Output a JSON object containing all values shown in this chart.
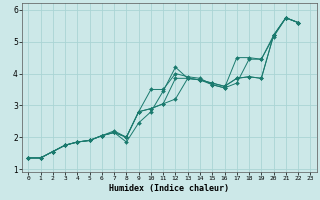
{
  "xlabel": "Humidex (Indice chaleur)",
  "bg_color": "#cce8e8",
  "grid_major_color": "#aad4d4",
  "grid_minor_color": "#bbdfdf",
  "line_color": "#1a7a6e",
  "xlim": [
    -0.5,
    23.5
  ],
  "ylim": [
    0.9,
    6.2
  ],
  "yticks": [
    1,
    2,
    3,
    4,
    5,
    6
  ],
  "xticks": [
    0,
    1,
    2,
    3,
    4,
    5,
    6,
    7,
    8,
    9,
    10,
    11,
    12,
    13,
    14,
    15,
    16,
    17,
    18,
    19,
    20,
    21,
    22,
    23
  ],
  "series": [
    {
      "x": [
        0,
        1,
        2,
        3,
        4,
        5,
        6,
        7,
        8,
        9,
        10,
        11,
        12,
        13,
        14,
        15,
        16,
        17,
        18,
        19,
        20,
        21,
        22
      ],
      "y": [
        1.35,
        1.35,
        1.55,
        1.75,
        1.85,
        1.9,
        2.05,
        2.15,
        1.85,
        2.45,
        2.8,
        3.45,
        4.2,
        3.85,
        3.8,
        3.7,
        3.6,
        3.85,
        3.9,
        3.85,
        5.2,
        5.75,
        5.6
      ]
    },
    {
      "x": [
        0,
        1,
        2,
        3,
        4,
        5,
        6,
        7,
        8,
        9,
        10,
        11,
        12,
        13,
        14,
        15,
        16,
        17,
        18,
        19,
        20,
        21,
        22
      ],
      "y": [
        1.35,
        1.35,
        1.55,
        1.75,
        1.85,
        1.9,
        2.05,
        2.15,
        2.0,
        2.8,
        2.9,
        3.05,
        3.2,
        3.85,
        3.8,
        3.7,
        3.6,
        3.85,
        3.9,
        3.85,
        5.2,
        5.75,
        5.6
      ]
    },
    {
      "x": [
        0,
        1,
        2,
        3,
        4,
        5,
        6,
        7,
        8,
        9,
        10,
        11,
        12,
        13,
        14,
        15,
        16,
        17,
        18,
        19,
        20,
        21,
        22
      ],
      "y": [
        1.35,
        1.35,
        1.55,
        1.75,
        1.85,
        1.9,
        2.05,
        2.15,
        2.0,
        2.8,
        2.9,
        3.05,
        3.85,
        3.85,
        3.8,
        3.65,
        3.55,
        3.7,
        4.45,
        4.45,
        5.2,
        5.75,
        5.6
      ]
    },
    {
      "x": [
        0,
        1,
        2,
        3,
        4,
        5,
        6,
        7,
        8,
        9,
        10,
        11,
        12,
        13,
        14,
        15,
        16,
        17,
        18,
        19,
        20,
        21,
        22
      ],
      "y": [
        1.35,
        1.35,
        1.55,
        1.75,
        1.85,
        1.9,
        2.05,
        2.2,
        2.0,
        2.8,
        3.5,
        3.5,
        4.0,
        3.9,
        3.85,
        3.65,
        3.55,
        4.5,
        4.5,
        4.45,
        5.15,
        5.75,
        5.6
      ]
    }
  ]
}
